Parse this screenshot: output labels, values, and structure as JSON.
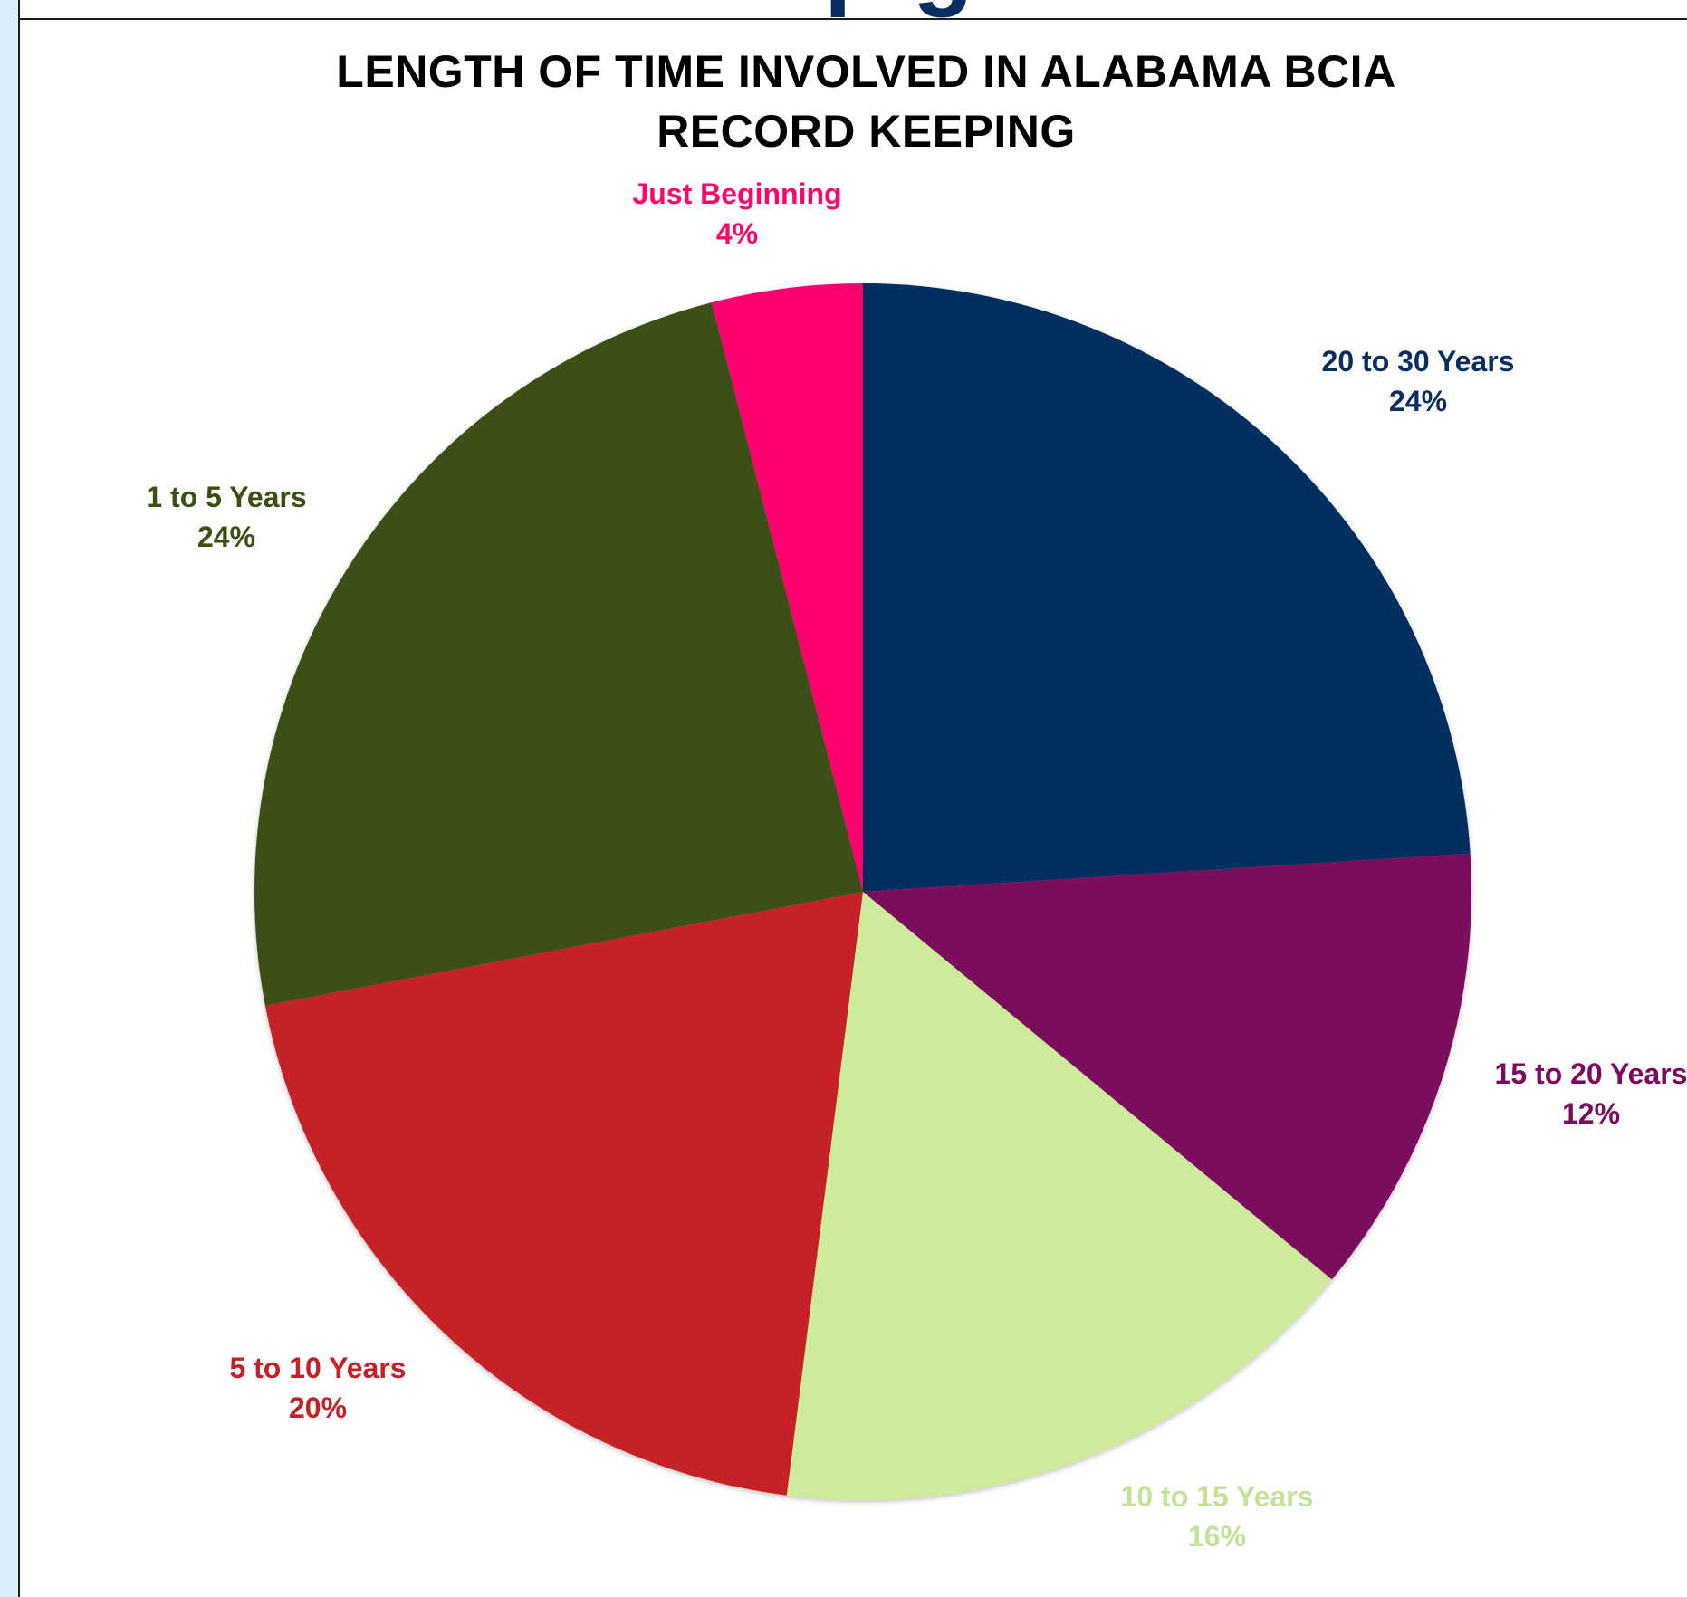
{
  "chart_data": {
    "type": "pie",
    "title_lines": [
      "LENGTH OF TIME INVOLVED IN ALABAMA BCIA",
      "RECORD KEEPING"
    ],
    "slices": [
      {
        "label": "20 to 30 Years",
        "value": 24,
        "value_label": "24%",
        "color": "#062e5f"
      },
      {
        "label": "15 to 20 Years",
        "value": 12,
        "value_label": "12%",
        "color": "#7a0a5d"
      },
      {
        "label": "10 to 15 Years",
        "value": 16,
        "value_label": "16%",
        "color": "#cdeb9b",
        "label_color": "#c3e197"
      },
      {
        "label": "5 to 10 Years",
        "value": 20,
        "value_label": "20%",
        "color": "#c42126"
      },
      {
        "label": "1 to 5 Years",
        "value": 24,
        "value_label": "24%",
        "color": "#3a5013"
      },
      {
        "label": "Just Beginning",
        "value": 4,
        "value_label": "4%",
        "color": "#fe056d"
      }
    ]
  },
  "page": {
    "heading_fragment": "p g",
    "heading_color": "#062e5f"
  }
}
